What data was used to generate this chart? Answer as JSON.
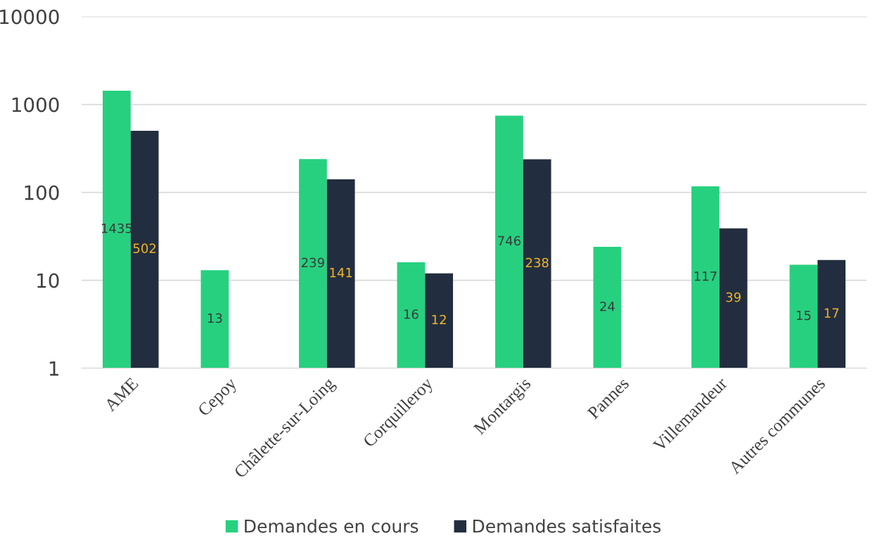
{
  "chart_data": {
    "type": "bar",
    "log": "y",
    "categories": [
      "AME",
      "Cepoy",
      "Châlette-sur-Loing",
      "Corquilleroy",
      "Montargis",
      "Pannes",
      "Villemandeur",
      "Autres communes"
    ],
    "series": [
      {
        "name": "Demandes en cours",
        "color": "#27d07f",
        "values": [
          1435,
          13,
          239,
          16,
          746,
          24,
          117,
          15
        ]
      },
      {
        "name": "Demandes satisfaites",
        "color": "#222e3f",
        "values": [
          502,
          null,
          141,
          12,
          238,
          null,
          39,
          17
        ]
      }
    ],
    "ylim": [
      1,
      10000
    ],
    "yticks": [
      1,
      10,
      100,
      1000,
      10000
    ],
    "grid": "y",
    "legend": "bottom",
    "data_labels": true
  }
}
